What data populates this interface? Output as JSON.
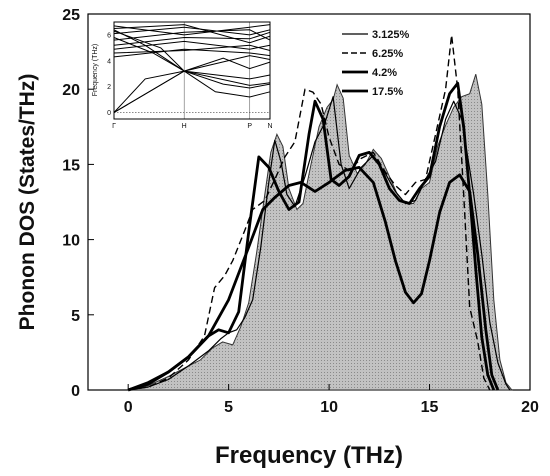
{
  "chart_data": [
    {
      "type": "area",
      "xlabel": "Frequency (THz)",
      "ylabel": "Phonon DOS (States/THz)",
      "xlim": [
        -2,
        20
      ],
      "ylim": [
        0,
        25
      ],
      "xticks": [
        0,
        5,
        10,
        15,
        20
      ],
      "yticks": [
        0,
        5,
        10,
        15,
        20,
        25
      ],
      "grid": false,
      "legend_position": "top-right",
      "series": [
        {
          "name": "3.125%",
          "style": "thin-solid",
          "points": [
            [
              0,
              0
            ],
            [
              1,
              0.2
            ],
            [
              2,
              0.7
            ],
            [
              3,
              1.6
            ],
            [
              4,
              2.6
            ],
            [
              4.6,
              3.4
            ],
            [
              5,
              3.8
            ],
            [
              5.4,
              4.0
            ],
            [
              5.8,
              4.8
            ],
            [
              6.2,
              6.0
            ],
            [
              6.6,
              9.5
            ],
            [
              7,
              13.8
            ],
            [
              7.3,
              16.6
            ],
            [
              7.6,
              15.2
            ],
            [
              7.9,
              13.0
            ],
            [
              8.3,
              12.2
            ],
            [
              8.8,
              14.2
            ],
            [
              9.3,
              16.5
            ],
            [
              9.8,
              17.8
            ],
            [
              10.2,
              19.5
            ],
            [
              10.6,
              15.0
            ],
            [
              11,
              13.4
            ],
            [
              11.6,
              14.8
            ],
            [
              12.2,
              15.6
            ],
            [
              12.8,
              14.4
            ],
            [
              13.3,
              13.2
            ],
            [
              13.8,
              12.4
            ],
            [
              14.3,
              12.6
            ],
            [
              14.8,
              14.0
            ],
            [
              15.3,
              15.2
            ],
            [
              15.8,
              18.0
            ],
            [
              16.2,
              19.2
            ],
            [
              16.6,
              18.0
            ],
            [
              16.9,
              15.5
            ],
            [
              17.2,
              13.0
            ],
            [
              17.6,
              9.0
            ],
            [
              18,
              4.5
            ],
            [
              18.4,
              1.8
            ],
            [
              18.8,
              0.4
            ],
            [
              19,
              0
            ]
          ]
        },
        {
          "name": "6.25%",
          "style": "dashed",
          "points": [
            [
              0,
              0
            ],
            [
              1,
              0.2
            ],
            [
              2,
              0.8
            ],
            [
              3,
              2.0
            ],
            [
              3.8,
              3.6
            ],
            [
              4.3,
              6.8
            ],
            [
              4.8,
              7.6
            ],
            [
              5.2,
              8.6
            ],
            [
              5.8,
              10.6
            ],
            [
              6.2,
              12.0
            ],
            [
              6.8,
              12.6
            ],
            [
              7.3,
              14.0
            ],
            [
              7.8,
              15.5
            ],
            [
              8.3,
              16.5
            ],
            [
              8.8,
              20.0
            ],
            [
              9.2,
              19.8
            ],
            [
              9.6,
              19.0
            ],
            [
              10,
              16.8
            ],
            [
              10.5,
              15.0
            ],
            [
              11,
              14.6
            ],
            [
              11.6,
              15.4
            ],
            [
              12.2,
              15.8
            ],
            [
              12.8,
              14.5
            ],
            [
              13.3,
              13.6
            ],
            [
              13.8,
              13.0
            ],
            [
              14.3,
              13.8
            ],
            [
              14.8,
              14.0
            ],
            [
              15.3,
              17.0
            ],
            [
              15.8,
              20.0
            ],
            [
              16.1,
              23.6
            ],
            [
              16.4,
              20.0
            ],
            [
              16.7,
              13.0
            ],
            [
              17,
              5.5
            ],
            [
              17.4,
              3.2
            ],
            [
              17.7,
              0.8
            ],
            [
              18,
              0
            ]
          ]
        },
        {
          "name": "4.2%",
          "style": "bold-solid",
          "points": [
            [
              0,
              0
            ],
            [
              1,
              0.4
            ],
            [
              2,
              1.2
            ],
            [
              3,
              2.2
            ],
            [
              4,
              3.6
            ],
            [
              4.5,
              4.0
            ],
            [
              5,
              3.8
            ],
            [
              5.5,
              5.2
            ],
            [
              6,
              10.5
            ],
            [
              6.5,
              15.5
            ],
            [
              7,
              14.8
            ],
            [
              7.5,
              13.2
            ],
            [
              8,
              12.0
            ],
            [
              8.5,
              12.5
            ],
            [
              9,
              17.0
            ],
            [
              9.3,
              19.2
            ],
            [
              9.7,
              18.0
            ],
            [
              10.1,
              14.0
            ],
            [
              10.5,
              13.6
            ],
            [
              11,
              14.2
            ],
            [
              11.5,
              15.6
            ],
            [
              12,
              15.8
            ],
            [
              12.5,
              15.0
            ],
            [
              13,
              13.4
            ],
            [
              13.5,
              12.6
            ],
            [
              14,
              12.4
            ],
            [
              14.5,
              13.4
            ],
            [
              15,
              14.2
            ],
            [
              15.5,
              17.5
            ],
            [
              16,
              19.7
            ],
            [
              16.4,
              20.4
            ],
            [
              16.7,
              17.5
            ],
            [
              17,
              13.0
            ],
            [
              17.3,
              8.0
            ],
            [
              17.6,
              3.5
            ],
            [
              17.9,
              1.0
            ],
            [
              18.2,
              0
            ]
          ]
        },
        {
          "name": "17.5%",
          "style": "bold-solid",
          "points": [
            [
              0,
              0
            ],
            [
              1,
              0.5
            ],
            [
              2,
              1.2
            ],
            [
              3,
              2.2
            ],
            [
              4,
              3.6
            ],
            [
              5,
              6.0
            ],
            [
              6,
              9.5
            ],
            [
              6.7,
              12.0
            ],
            [
              7.3,
              12.8
            ],
            [
              8,
              13.6
            ],
            [
              8.6,
              13.8
            ],
            [
              9.3,
              13.2
            ],
            [
              10,
              13.8
            ],
            [
              10.8,
              14.6
            ],
            [
              11.5,
              14.8
            ],
            [
              12.2,
              13.8
            ],
            [
              12.8,
              11.2
            ],
            [
              13.3,
              8.6
            ],
            [
              13.8,
              6.5
            ],
            [
              14.2,
              5.8
            ],
            [
              14.6,
              6.4
            ],
            [
              15,
              8.6
            ],
            [
              15.5,
              11.8
            ],
            [
              16,
              13.8
            ],
            [
              16.5,
              14.3
            ],
            [
              17,
              13.2
            ],
            [
              17.4,
              9.0
            ],
            [
              17.8,
              4.0
            ],
            [
              18.1,
              1.0
            ],
            [
              18.4,
              0
            ]
          ]
        }
      ],
      "background_dos": {
        "fill": "#b8b8b8",
        "points": [
          [
            0,
            0
          ],
          [
            1,
            0.3
          ],
          [
            2,
            0.9
          ],
          [
            3,
            1.6
          ],
          [
            3.6,
            2.0
          ],
          [
            4.2,
            2.8
          ],
          [
            4.7,
            3.2
          ],
          [
            5.2,
            3.0
          ],
          [
            5.6,
            4.2
          ],
          [
            6,
            5.8
          ],
          [
            6.4,
            9.2
          ],
          [
            6.8,
            13.0
          ],
          [
            7.1,
            15.8
          ],
          [
            7.4,
            17.0
          ],
          [
            7.7,
            16.2
          ],
          [
            8,
            13.4
          ],
          [
            8.4,
            12.0
          ],
          [
            8.7,
            12.4
          ],
          [
            9.1,
            15.0
          ],
          [
            9.5,
            17.5
          ],
          [
            9.9,
            18.8
          ],
          [
            10.2,
            19.3
          ],
          [
            10.4,
            20.3
          ],
          [
            10.7,
            19.4
          ],
          [
            11,
            15.6
          ],
          [
            11.4,
            14.4
          ],
          [
            11.8,
            15.0
          ],
          [
            12.2,
            16.0
          ],
          [
            12.6,
            15.4
          ],
          [
            13,
            14.2
          ],
          [
            13.4,
            13.0
          ],
          [
            13.8,
            12.4
          ],
          [
            14.2,
            12.4
          ],
          [
            14.6,
            13.4
          ],
          [
            15,
            13.8
          ],
          [
            15.4,
            16.2
          ],
          [
            15.8,
            17.6
          ],
          [
            16.2,
            18.8
          ],
          [
            16.6,
            19.5
          ],
          [
            17,
            19.7
          ],
          [
            17.3,
            21.0
          ],
          [
            17.6,
            19.0
          ],
          [
            17.9,
            13.0
          ],
          [
            18.2,
            6.0
          ],
          [
            18.5,
            2.0
          ],
          [
            18.8,
            0.5
          ],
          [
            19.1,
            0
          ]
        ]
      }
    },
    {
      "type": "line",
      "ylabel": "Frequency (THz)",
      "xlim": [
        0,
        1
      ],
      "ylim": [
        -0.5,
        7
      ],
      "yticks": [
        0,
        2,
        4,
        6
      ],
      "xticks": [
        {
          "label": "Γ",
          "pos": 0
        },
        {
          "label": "H",
          "pos": 0.45
        },
        {
          "label": "P",
          "pos": 0.87
        },
        {
          "label": "N",
          "pos": 1
        }
      ],
      "hlines": [
        0
      ],
      "vlines": [
        0.45,
        0.87
      ],
      "series": [
        {
          "points": [
            [
              0,
              0
            ],
            [
              0.45,
              3.2
            ],
            [
              0.87,
              2.1
            ],
            [
              1,
              2.3
            ]
          ]
        },
        {
          "points": [
            [
              0,
              0
            ],
            [
              0.2,
              2.6
            ],
            [
              0.45,
              3.2
            ],
            [
              0.7,
              4.2
            ],
            [
              0.87,
              3.4
            ],
            [
              1,
              3.9
            ]
          ]
        },
        {
          "points": [
            [
              0,
              0
            ],
            [
              0.45,
              3.2
            ],
            [
              0.87,
              4.4
            ],
            [
              1,
              4.1
            ]
          ]
        },
        {
          "points": [
            [
              0,
              6.4
            ],
            [
              0.2,
              5.2
            ],
            [
              0.45,
              3.2
            ],
            [
              0.87,
              2.6
            ],
            [
              1,
              2.9
            ]
          ]
        },
        {
          "points": [
            [
              0,
              6.3
            ],
            [
              0.3,
              5.0
            ],
            [
              0.45,
              3.2
            ],
            [
              0.65,
              1.6
            ],
            [
              0.87,
              1.2
            ],
            [
              1,
              1.6
            ]
          ]
        },
        {
          "points": [
            [
              0,
              5.8
            ],
            [
              0.25,
              4.6
            ],
            [
              0.45,
              3.2
            ],
            [
              0.7,
              2.2
            ],
            [
              0.87,
              1.9
            ],
            [
              1,
              2.2
            ]
          ]
        },
        {
          "points": [
            [
              0,
              6.5
            ],
            [
              0.45,
              6.8
            ],
            [
              0.87,
              5.4
            ],
            [
              1,
              5.9
            ]
          ]
        },
        {
          "points": [
            [
              0,
              5.6
            ],
            [
              0.45,
              6.2
            ],
            [
              0.87,
              6.4
            ],
            [
              1,
              5.6
            ]
          ]
        },
        {
          "points": [
            [
              0,
              4.9
            ],
            [
              0.45,
              5.5
            ],
            [
              0.87,
              4.9
            ],
            [
              1,
              5.2
            ]
          ]
        },
        {
          "points": [
            [
              0,
              4.6
            ],
            [
              0.45,
              4.8
            ],
            [
              0.87,
              5.2
            ],
            [
              1,
              4.8
            ]
          ]
        },
        {
          "points": [
            [
              0,
              6.1
            ],
            [
              0.45,
              6.6
            ],
            [
              0.87,
              6.0
            ],
            [
              1,
              6.4
            ]
          ]
        },
        {
          "points": [
            [
              0,
              5.2
            ],
            [
              0.45,
              5.8
            ],
            [
              0.87,
              5.7
            ],
            [
              1,
              6.2
            ]
          ]
        },
        {
          "points": [
            [
              0,
              4.3
            ],
            [
              0.45,
              4.9
            ],
            [
              0.87,
              4.6
            ],
            [
              1,
              4.4
            ]
          ]
        },
        {
          "points": [
            [
              0,
              6.7
            ],
            [
              0.45,
              6.0
            ],
            [
              0.87,
              6.6
            ],
            [
              1,
              6.8
            ]
          ]
        }
      ]
    }
  ]
}
